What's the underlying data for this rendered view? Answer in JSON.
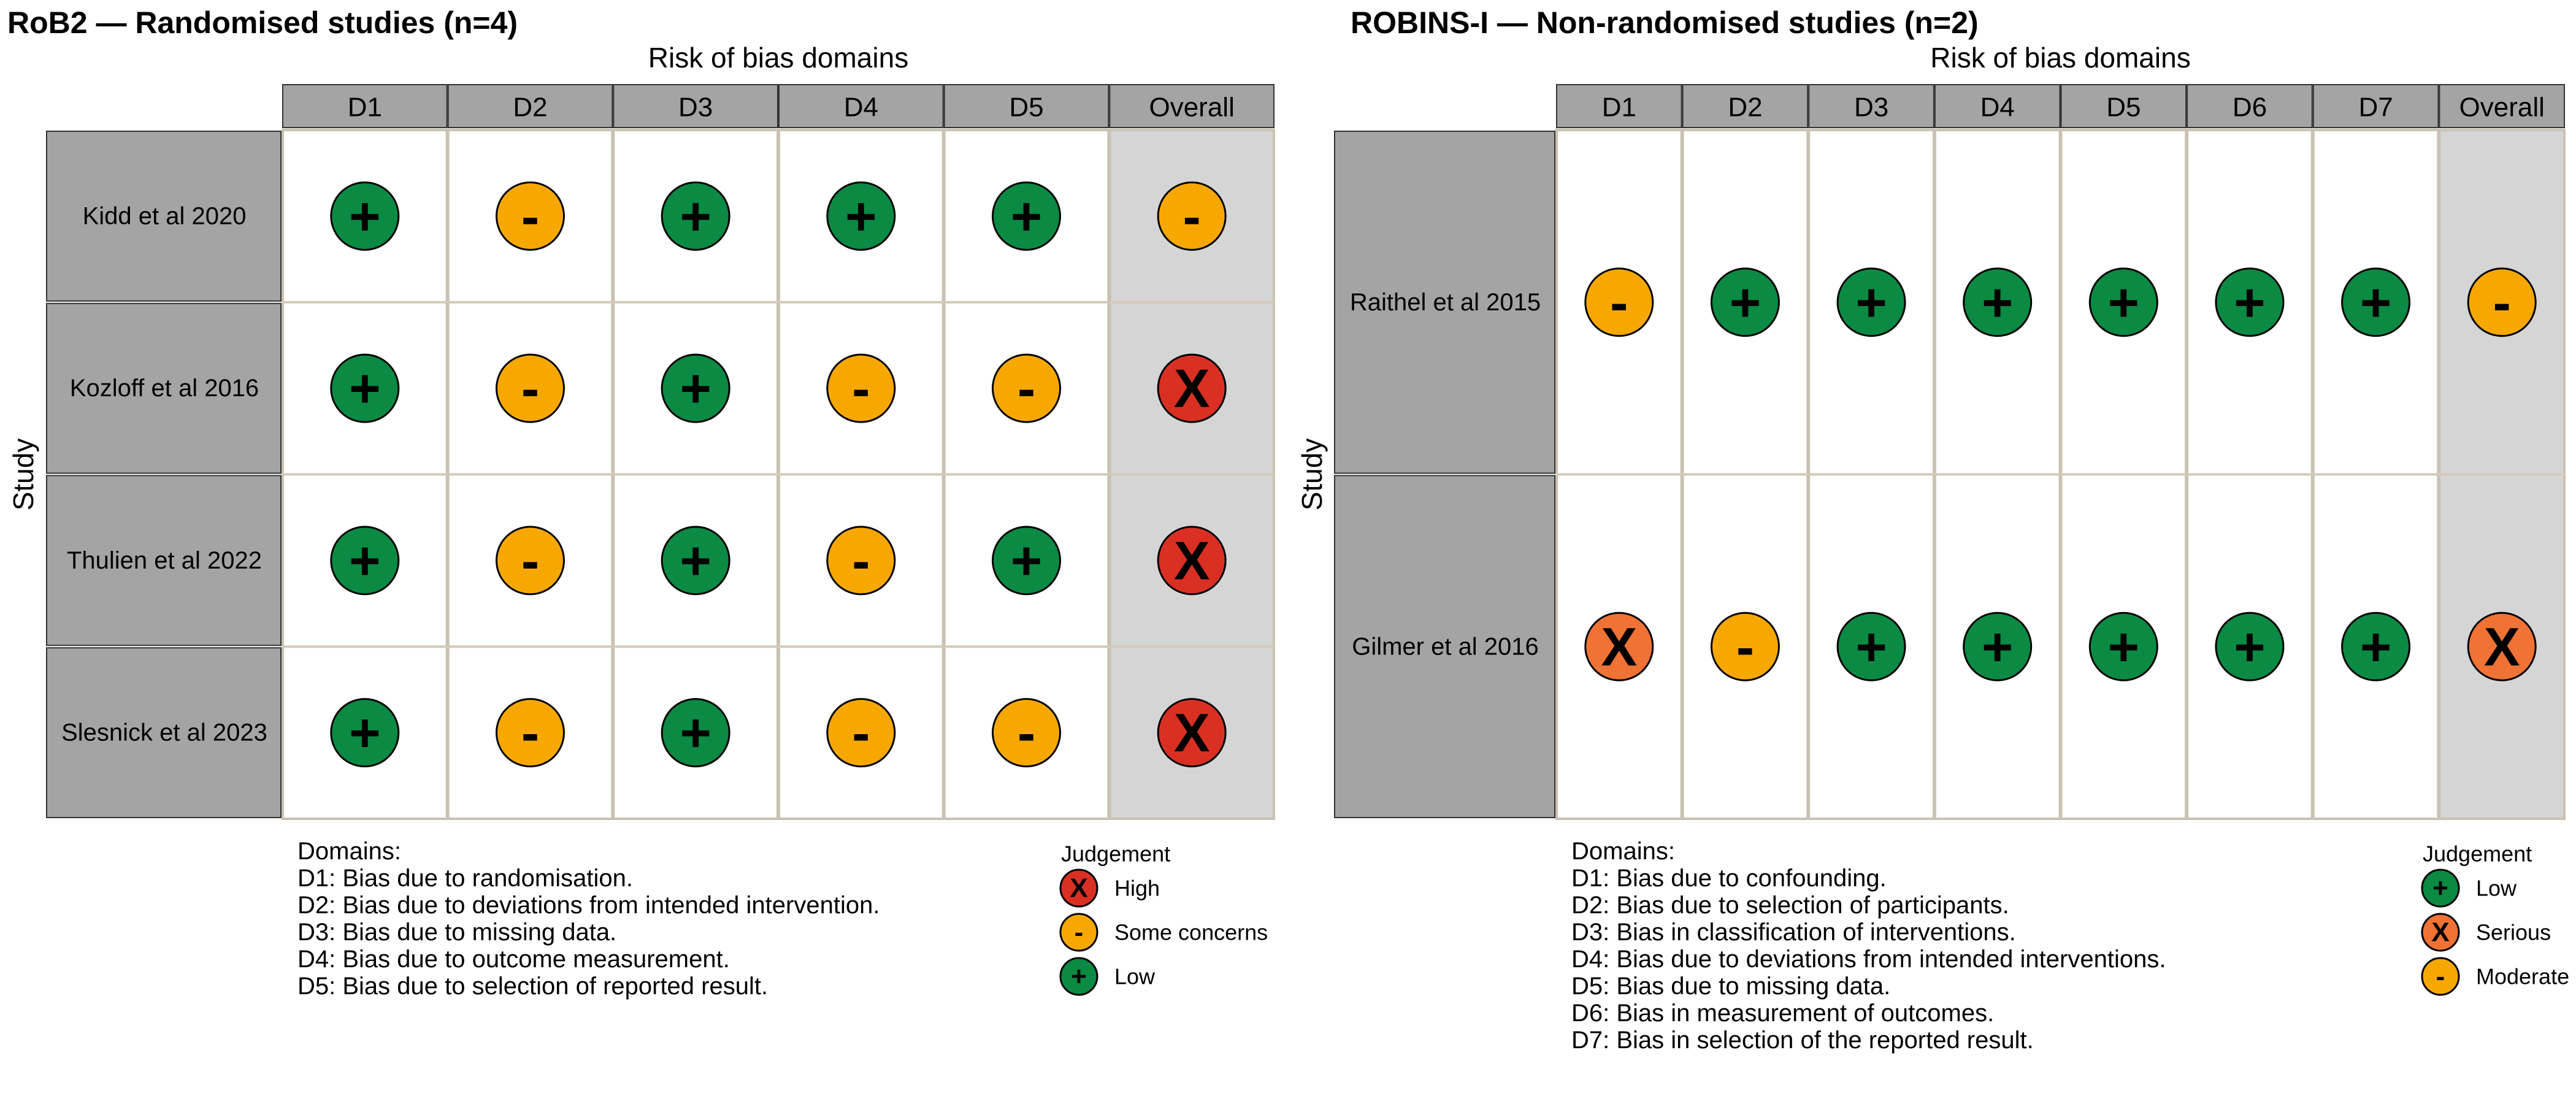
{
  "colors": {
    "low": "#0a8a43",
    "some_concerns": "#f7a800",
    "high": "#d93023",
    "serious": "#f07235",
    "moderate": "#f7a800",
    "header_fill": "#a4a4a4",
    "overall_fill": "#d5d5d5",
    "cell_fill": "#ffffff"
  },
  "chart_data": [
    {
      "type": "table",
      "title": "RoB2 — Randomised studies (n=4)",
      "top_label": "Risk of bias domains",
      "y_label": "Study",
      "columns": [
        "D1",
        "D2",
        "D3",
        "D4",
        "D5",
        "Overall"
      ],
      "studies": [
        "Kidd et al 2020",
        "Kozloff et al 2016",
        "Thulien et al 2022",
        "Slesnick et al 2023"
      ],
      "judgements": [
        [
          "low",
          "some_concerns",
          "low",
          "low",
          "low",
          "some_concerns"
        ],
        [
          "low",
          "some_concerns",
          "low",
          "some_concerns",
          "some_concerns",
          "high"
        ],
        [
          "low",
          "some_concerns",
          "low",
          "some_concerns",
          "low",
          "high"
        ],
        [
          "low",
          "some_concerns",
          "low",
          "some_concerns",
          "some_concerns",
          "high"
        ]
      ],
      "domains_title": "Domains:",
      "domains": [
        "D1: Bias due to randomisation.",
        "D2: Bias due to deviations from intended intervention.",
        "D3: Bias due to missing data.",
        "D4: Bias due to outcome measurement.",
        "D5: Bias due to selection of reported result."
      ],
      "legend_title": "Judgement",
      "legend": [
        {
          "key": "high",
          "label": "High"
        },
        {
          "key": "some_concerns",
          "label": "Some concerns"
        },
        {
          "key": "low",
          "label": "Low"
        }
      ]
    },
    {
      "type": "table",
      "title": "ROBINS-I — Non-randomised studies (n=2)",
      "top_label": "Risk of bias domains",
      "y_label": "Study",
      "columns": [
        "D1",
        "D2",
        "D3",
        "D4",
        "D5",
        "D6",
        "D7",
        "Overall"
      ],
      "studies": [
        "Raithel et al 2015",
        "Gilmer et al 2016"
      ],
      "judgements": [
        [
          "moderate",
          "low",
          "low",
          "low",
          "low",
          "low",
          "low",
          "moderate"
        ],
        [
          "serious",
          "moderate",
          "low",
          "low",
          "low",
          "low",
          "low",
          "serious"
        ]
      ],
      "domains_title": "Domains:",
      "domains": [
        "D1: Bias due to confounding.",
        "D2: Bias due to selection of participants.",
        "D3: Bias in classification of interventions.",
        "D4: Bias due to deviations from intended interventions.",
        "D5: Bias due to missing data.",
        "D6: Bias in measurement of outcomes.",
        "D7: Bias in selection of the reported result."
      ],
      "legend_title": "Judgement",
      "legend": [
        {
          "key": "low",
          "label": "Low"
        },
        {
          "key": "serious",
          "label": "Serious"
        },
        {
          "key": "moderate",
          "label": "Moderate"
        }
      ]
    }
  ]
}
